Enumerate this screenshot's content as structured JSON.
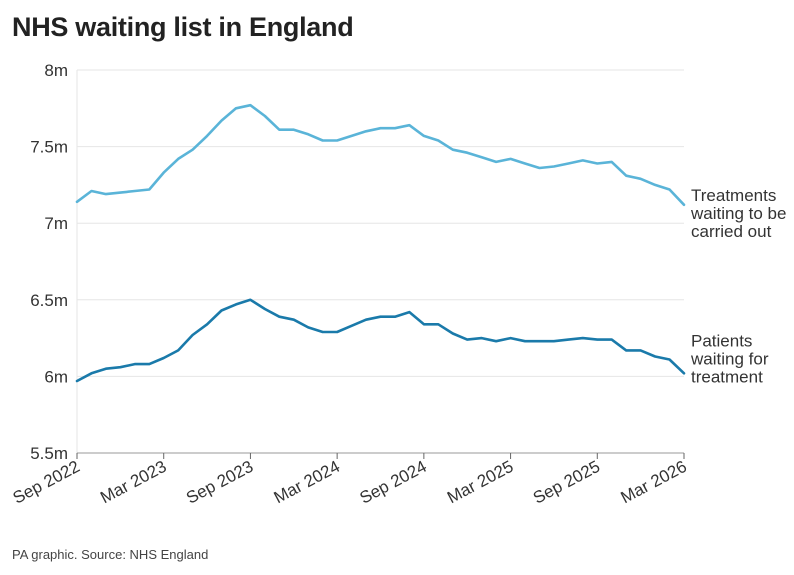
{
  "title": "NHS waiting list in England",
  "source": "PA graphic. Source: NHS England",
  "chart_data": {
    "type": "line",
    "title": "NHS waiting list in England",
    "xlabel": "",
    "ylabel": "",
    "ylim": [
      5.5,
      8
    ],
    "yticks": [
      {
        "value": 5.5,
        "label": "5.5m"
      },
      {
        "value": 6,
        "label": "6m"
      },
      {
        "value": 6.5,
        "label": "6.5m"
      },
      {
        "value": 7,
        "label": "7m"
      },
      {
        "value": 7.5,
        "label": "7.5m"
      },
      {
        "value": 8,
        "label": "8m"
      }
    ],
    "xticks": [
      {
        "value": "2022-09",
        "label": "Sep 2022"
      },
      {
        "value": "2023-03",
        "label": "Mar 2023"
      },
      {
        "value": "2023-09",
        "label": "Sep 2023"
      },
      {
        "value": "2024-03",
        "label": "Mar 2024"
      },
      {
        "value": "2024-09",
        "label": "Sep 2024"
      },
      {
        "value": "2025-03",
        "label": "Mar 2025"
      },
      {
        "value": "2025-09",
        "label": "Sep 2025"
      },
      {
        "value": "2026-03",
        "label": "Mar 2026"
      }
    ],
    "grid": true,
    "legend": "direct labels at right end of lines",
    "x": [
      "2022-09",
      "2022-10",
      "2022-11",
      "2022-12",
      "2023-01",
      "2023-02",
      "2023-03",
      "2023-04",
      "2023-05",
      "2023-06",
      "2023-07",
      "2023-08",
      "2023-09",
      "2023-10",
      "2023-11",
      "2023-12",
      "2024-01",
      "2024-02",
      "2024-03",
      "2024-04",
      "2024-05",
      "2024-06",
      "2024-07",
      "2024-08",
      "2024-09",
      "2024-10",
      "2024-11",
      "2024-12",
      "2025-01",
      "2025-02",
      "2025-03",
      "2025-04",
      "2025-05",
      "2025-06",
      "2025-07",
      "2025-08",
      "2025-09",
      "2025-10",
      "2025-11",
      "2025-12",
      "2026-01",
      "2026-02",
      "2026-03"
    ],
    "series": [
      {
        "name": "Treatments waiting to be carried out",
        "color": "#5ab4d8",
        "values": [
          7.14,
          7.21,
          7.19,
          7.2,
          7.21,
          7.22,
          7.33,
          7.42,
          7.48,
          7.57,
          7.67,
          7.75,
          7.77,
          7.7,
          7.61,
          7.61,
          7.58,
          7.54,
          7.54,
          7.57,
          7.6,
          7.62,
          7.62,
          7.64,
          7.57,
          7.54,
          7.48,
          7.46,
          7.43,
          7.4,
          7.42,
          7.39,
          7.36,
          7.37,
          7.39,
          7.41,
          7.39,
          7.4,
          7.31,
          7.29,
          7.25,
          7.22,
          7.12
        ]
      },
      {
        "name": "Patients waiting for treatment",
        "color": "#1a7aaa",
        "values": [
          5.97,
          6.02,
          6.05,
          6.06,
          6.08,
          6.08,
          6.12,
          6.17,
          6.27,
          6.34,
          6.43,
          6.47,
          6.5,
          6.44,
          6.39,
          6.37,
          6.32,
          6.29,
          6.29,
          6.33,
          6.37,
          6.39,
          6.39,
          6.42,
          6.34,
          6.34,
          6.28,
          6.24,
          6.25,
          6.23,
          6.25,
          6.23,
          6.23,
          6.23,
          6.24,
          6.25,
          6.24,
          6.24,
          6.17,
          6.17,
          6.13,
          6.11,
          6.02
        ]
      }
    ],
    "series_labels": [
      {
        "lines": [
          "Treatments",
          "waiting to be",
          "carried out"
        ]
      },
      {
        "lines": [
          "Patients",
          "waiting for",
          "treatment"
        ]
      }
    ]
  }
}
